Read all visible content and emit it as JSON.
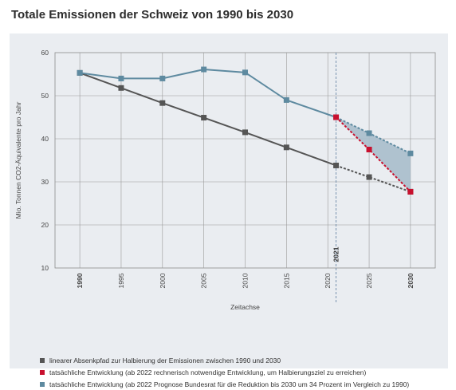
{
  "title": "Totale Emissionen der Schweiz von 1990 bis 2030",
  "chart_data": {
    "type": "line",
    "xlabel": "Zeitachse",
    "ylabel": "Mio. Tonnen CO2-Äquivalente pro Jahr",
    "xlim": [
      1987,
      2033
    ],
    "ylim": [
      10,
      60
    ],
    "y_ticks": [
      10,
      20,
      30,
      40,
      50,
      60
    ],
    "x_ticks": [
      "1990",
      "1995",
      "2000",
      "2005",
      "2010",
      "2015",
      "2020",
      "2025",
      "2030"
    ],
    "bold_x_ticks": [
      "1990",
      "2030"
    ],
    "marker_line": {
      "x": 2021,
      "label": "2021"
    },
    "grid": true,
    "series": [
      {
        "name": "linearer Absenkpfad zur Halbierung der Emissionen zwischen 1990 und 2030",
        "color": "#555555",
        "points": [
          [
            1990,
            55.3
          ],
          [
            1995,
            51.8
          ],
          [
            2000,
            48.3
          ],
          [
            2005,
            44.9
          ],
          [
            2010,
            41.5
          ],
          [
            2015,
            38.0
          ],
          [
            2021,
            33.8
          ],
          [
            2025,
            31.1
          ],
          [
            2030,
            27.7
          ]
        ],
        "dashed_from_index": 6
      },
      {
        "name": "tatsächliche Entwicklung (ab 2022 rechnerisch notwendige Entwicklung, um Halbierungsziel zu erreichen)",
        "color": "#c8102e",
        "points": [
          [
            2021,
            45.0
          ],
          [
            2025,
            37.5
          ],
          [
            2030,
            27.7
          ]
        ],
        "dashed_from_index": 0
      },
      {
        "name": "tatsächliche Entwicklung (ab 2022 Prognose Bundesrat für die Reduktion bis 2030 um 34 Prozent im Vergleich zu 1990)",
        "color": "#5e8aa0",
        "points": [
          [
            1990,
            55.3
          ],
          [
            1995,
            54.0
          ],
          [
            2000,
            54.0
          ],
          [
            2005,
            56.1
          ],
          [
            2010,
            55.4
          ],
          [
            2015,
            49.0
          ],
          [
            2021,
            45.0
          ],
          [
            2025,
            41.3
          ],
          [
            2030,
            36.6
          ]
        ],
        "dashed_from_index": 6
      }
    ],
    "shaded_area_color": "#a9bccb"
  }
}
